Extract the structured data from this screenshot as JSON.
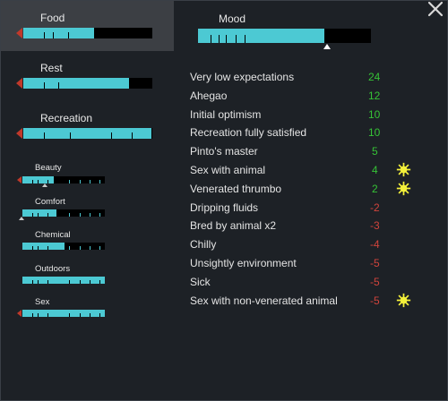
{
  "window": {
    "close_icon": "close-x-icon"
  },
  "needs_large": [
    {
      "key": "food",
      "label": "Food",
      "level": 0.55
    },
    {
      "key": "rest",
      "label": "Rest",
      "level": 0.82
    },
    {
      "key": "recreation",
      "label": "Recreation",
      "level": 0.99
    }
  ],
  "needs_small": [
    {
      "key": "beauty",
      "label": "Beauty",
      "level": 0.38
    },
    {
      "key": "comfort",
      "label": "Comfort",
      "level": 0.41
    },
    {
      "key": "chemical",
      "label": "Chemical",
      "level": 0.51
    },
    {
      "key": "outdoors",
      "label": "Outdoors",
      "level": 1.0
    },
    {
      "key": "sex",
      "label": "Sex",
      "level": 1.0
    }
  ],
  "mood": {
    "label": "Mood",
    "level": 0.73
  },
  "thoughts": [
    {
      "label": "Very low expectations",
      "value": "24",
      "positive": true,
      "icon": null
    },
    {
      "label": "Ahegao",
      "value": "12",
      "positive": true,
      "icon": null
    },
    {
      "label": "Initial optimism",
      "value": "10",
      "positive": true,
      "icon": null
    },
    {
      "label": "Recreation fully satisfied",
      "value": "10",
      "positive": true,
      "icon": null
    },
    {
      "label": "Pinto's master",
      "value": "5",
      "positive": true,
      "icon": null
    },
    {
      "label": "Sex with animal",
      "value": "4",
      "positive": true,
      "icon": "ideology-sun-icon"
    },
    {
      "label": "Venerated thrumbo",
      "value": "2",
      "positive": true,
      "icon": "ideology-sun-icon"
    },
    {
      "label": "Dripping fluids",
      "value": "-2",
      "positive": false,
      "icon": null
    },
    {
      "label": "Bred by animal x2",
      "value": "-3",
      "positive": false,
      "icon": null
    },
    {
      "label": "Chilly",
      "value": "-4",
      "positive": false,
      "icon": null
    },
    {
      "label": "Unsightly environment",
      "value": "-5",
      "positive": false,
      "icon": null
    },
    {
      "label": "Sick",
      "value": "-5",
      "positive": false,
      "icon": null
    },
    {
      "label": "Sex with non-venerated animal",
      "value": "-5",
      "positive": false,
      "icon": "ideology-sun-icon"
    }
  ],
  "colors": {
    "bar_fill": "#4cc9d3",
    "positive": "#36c236",
    "negative": "#d0443c",
    "arrow": "#c0392b",
    "icon": "#f3f03a"
  }
}
